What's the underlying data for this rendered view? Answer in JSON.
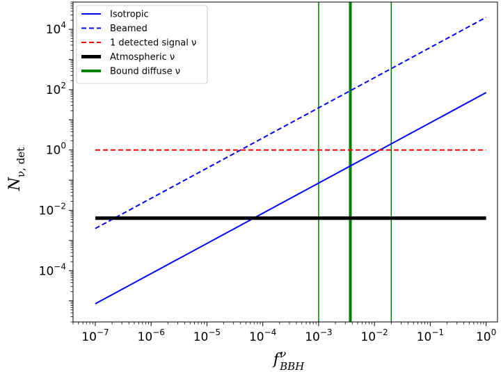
{
  "chart_data": {
    "type": "line",
    "xlabel": {
      "base": "f",
      "sup": "ν",
      "sub": "BBH"
    },
    "ylabel": {
      "base": "N",
      "sub": "ν, det"
    },
    "xscale": "log",
    "yscale": "log",
    "xlim": [
      4e-08,
      1.6
    ],
    "ylim": [
      2e-06,
      80000.0
    ],
    "x_ticks": [
      {
        "value": 1e-07,
        "mantissa": "10",
        "exp": "−7"
      },
      {
        "value": 1e-06,
        "mantissa": "10",
        "exp": "−6"
      },
      {
        "value": 1e-05,
        "mantissa": "10",
        "exp": "−5"
      },
      {
        "value": 0.0001,
        "mantissa": "10",
        "exp": "−4"
      },
      {
        "value": 0.001,
        "mantissa": "10",
        "exp": "−3"
      },
      {
        "value": 0.01,
        "mantissa": "10",
        "exp": "−2"
      },
      {
        "value": 0.1,
        "mantissa": "10",
        "exp": "−1"
      },
      {
        "value": 1,
        "mantissa": "10",
        "exp": "0"
      }
    ],
    "y_ticks": [
      {
        "value": 0.0001,
        "mantissa": "10",
        "exp": "−4"
      },
      {
        "value": 0.01,
        "mantissa": "10",
        "exp": "−2"
      },
      {
        "value": 1,
        "mantissa": "10",
        "exp": "0"
      },
      {
        "value": 100,
        "mantissa": "10",
        "exp": "2"
      },
      {
        "value": 10000,
        "mantissa": "10",
        "exp": "4"
      }
    ],
    "series": [
      {
        "name": "Isotropic",
        "color": "#0000ff",
        "style": "solid",
        "width": 2,
        "x": [
          1e-07,
          1
        ],
        "y": [
          8e-06,
          80
        ]
      },
      {
        "name": "Beamed",
        "color": "#0000ff",
        "style": "dashed",
        "width": 2,
        "x": [
          1e-07,
          1
        ],
        "y": [
          0.0025,
          25000
        ]
      },
      {
        "name": "1 detected signal ν",
        "color": "#ff0000",
        "style": "dashed",
        "width": 2,
        "x": [
          1e-07,
          1
        ],
        "y": [
          1,
          1
        ]
      },
      {
        "name": "Atmospheric ν",
        "color": "#000000",
        "style": "solid",
        "width": 5,
        "x": [
          1e-07,
          1
        ],
        "y": [
          0.0055,
          0.0055
        ]
      }
    ],
    "vlines": [
      {
        "name": "Bound diffuse ν",
        "x": 0.0037,
        "color": "#008000",
        "width": 4
      },
      {
        "name": "Bound diffuse ν lower",
        "x": 0.001,
        "color": "#008000",
        "width": 1.5
      },
      {
        "name": "Bound diffuse ν upper",
        "x": 0.02,
        "color": "#008000",
        "width": 1.5
      }
    ],
    "legend": {
      "position": "top-left",
      "entries": [
        {
          "label": "Isotropic",
          "color": "#0000ff",
          "style": "solid",
          "width": 2
        },
        {
          "label": "Beamed",
          "color": "#0000ff",
          "style": "dashed",
          "width": 2
        },
        {
          "label": "1 detected signal ν",
          "color": "#ff0000",
          "style": "dashed",
          "width": 2
        },
        {
          "label": "Atmospheric ν",
          "color": "#000000",
          "style": "solid",
          "width": 5
        },
        {
          "label": "Bound diffuse ν",
          "color": "#008000",
          "style": "solid",
          "width": 4
        }
      ]
    }
  }
}
